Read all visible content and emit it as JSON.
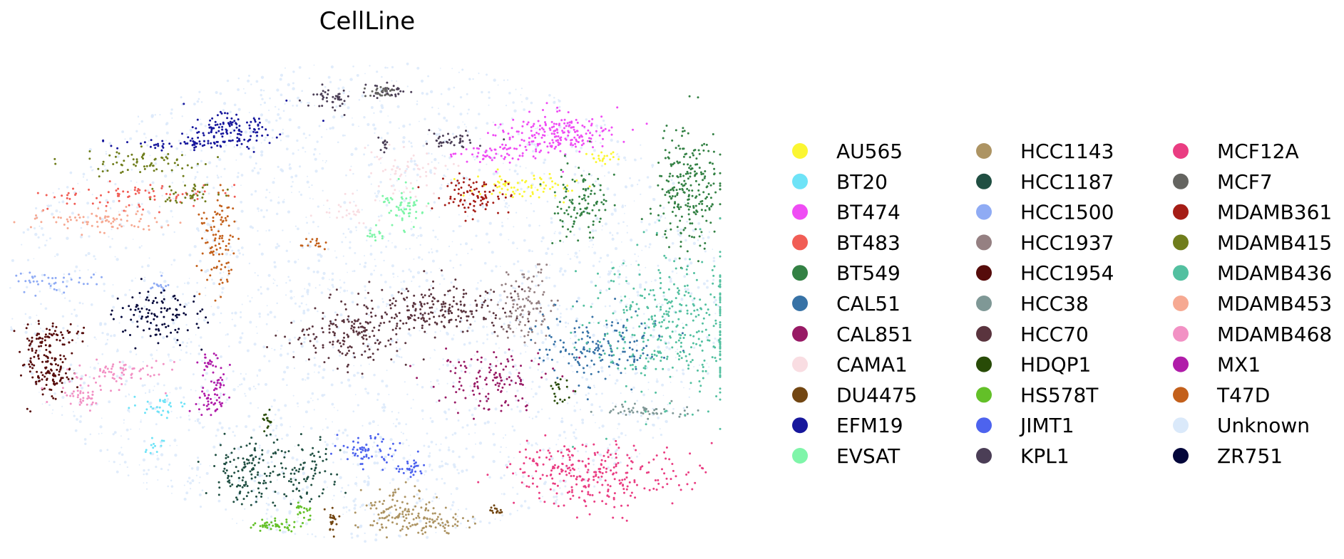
{
  "chart_data": {
    "type": "scatter",
    "title": "CellLine",
    "xlabel": "",
    "ylabel": "",
    "grid": false,
    "axes_visible": false,
    "legend_placement": "right",
    "legend_columns": 3,
    "x_range": [
      0,
      1
    ],
    "y_range": [
      0,
      1
    ],
    "background_color": "#ffffff",
    "series": [
      {
        "name": "AU565",
        "color": "#fbf632",
        "clusters": [
          {
            "x": 0.72,
            "y": 0.26,
            "sx": 0.035,
            "sy": 0.012,
            "n": 70
          },
          {
            "x": 0.83,
            "y": 0.2,
            "sx": 0.012,
            "sy": 0.008,
            "n": 20
          }
        ]
      },
      {
        "name": "BT20",
        "color": "#6ee3f7",
        "clusters": [
          {
            "x": 0.21,
            "y": 0.72,
            "sx": 0.018,
            "sy": 0.012,
            "n": 30
          },
          {
            "x": 0.2,
            "y": 0.8,
            "sx": 0.006,
            "sy": 0.012,
            "n": 12
          }
        ]
      },
      {
        "name": "BT474",
        "color": "#ef4cf4",
        "clusters": [
          {
            "x": 0.76,
            "y": 0.15,
            "sx": 0.04,
            "sy": 0.022,
            "n": 200
          },
          {
            "x": 0.67,
            "y": 0.19,
            "sx": 0.028,
            "sy": 0.01,
            "n": 50
          }
        ]
      },
      {
        "name": "BT483",
        "color": "#f15d55",
        "clusters": [
          {
            "x": 0.17,
            "y": 0.28,
            "sx": 0.06,
            "sy": 0.014,
            "n": 80
          }
        ]
      },
      {
        "name": "BT549",
        "color": "#338144",
        "clusters": [
          {
            "x": 0.95,
            "y": 0.27,
            "sx": 0.022,
            "sy": 0.065,
            "n": 240
          },
          {
            "x": 0.8,
            "y": 0.29,
            "sx": 0.02,
            "sy": 0.04,
            "n": 110
          }
        ]
      },
      {
        "name": "CAL51",
        "color": "#3772a6",
        "clusters": [
          {
            "x": 0.83,
            "y": 0.59,
            "sx": 0.05,
            "sy": 0.035,
            "n": 170
          }
        ]
      },
      {
        "name": "CAL851",
        "color": "#981a65",
        "clusters": [
          {
            "x": 0.67,
            "y": 0.67,
            "sx": 0.04,
            "sy": 0.03,
            "n": 130
          }
        ]
      },
      {
        "name": "CAMA1",
        "color": "#f9dde2",
        "clusters": [
          {
            "x": 0.56,
            "y": 0.23,
            "sx": 0.03,
            "sy": 0.03,
            "n": 60
          },
          {
            "x": 0.47,
            "y": 0.31,
            "sx": 0.02,
            "sy": 0.015,
            "n": 25
          }
        ]
      },
      {
        "name": "DU4475",
        "color": "#724612",
        "clusters": [
          {
            "x": 0.45,
            "y": 0.96,
            "sx": 0.004,
            "sy": 0.012,
            "n": 20
          },
          {
            "x": 0.68,
            "y": 0.94,
            "sx": 0.008,
            "sy": 0.005,
            "n": 15
          }
        ]
      },
      {
        "name": "EFM19",
        "color": "#17179c",
        "clusters": [
          {
            "x": 0.31,
            "y": 0.14,
            "sx": 0.03,
            "sy": 0.02,
            "n": 130
          },
          {
            "x": 0.24,
            "y": 0.17,
            "sx": 0.04,
            "sy": 0.006,
            "n": 50
          }
        ]
      },
      {
        "name": "EVSAT",
        "color": "#7ff5a9",
        "clusters": [
          {
            "x": 0.55,
            "y": 0.3,
            "sx": 0.014,
            "sy": 0.02,
            "n": 60
          },
          {
            "x": 0.51,
            "y": 0.36,
            "sx": 0.006,
            "sy": 0.008,
            "n": 15
          }
        ]
      },
      {
        "name": "HCC1143",
        "color": "#ad9463",
        "clusters": [
          {
            "x": 0.54,
            "y": 0.94,
            "sx": 0.025,
            "sy": 0.025,
            "n": 110
          },
          {
            "x": 0.6,
            "y": 0.96,
            "sx": 0.02,
            "sy": 0.012,
            "n": 60
          }
        ]
      },
      {
        "name": "HCC1187",
        "color": "#204f42",
        "clusters": [
          {
            "x": 0.34,
            "y": 0.86,
            "sx": 0.03,
            "sy": 0.035,
            "n": 150
          },
          {
            "x": 0.42,
            "y": 0.86,
            "sx": 0.02,
            "sy": 0.03,
            "n": 70
          }
        ]
      },
      {
        "name": "HCC1500",
        "color": "#8fabf4",
        "clusters": [
          {
            "x": 0.06,
            "y": 0.46,
            "sx": 0.03,
            "sy": 0.012,
            "n": 40
          },
          {
            "x": 0.21,
            "y": 0.47,
            "sx": 0.008,
            "sy": 0.008,
            "n": 15
          }
        ]
      },
      {
        "name": "HCC1937",
        "color": "#958082",
        "clusters": [
          {
            "x": 0.72,
            "y": 0.51,
            "sx": 0.02,
            "sy": 0.04,
            "n": 110
          }
        ]
      },
      {
        "name": "HCC1954",
        "color": "#560c0b",
        "clusters": [
          {
            "x": 0.05,
            "y": 0.64,
            "sx": 0.018,
            "sy": 0.03,
            "n": 130
          },
          {
            "x": 0.05,
            "y": 0.57,
            "sx": 0.025,
            "sy": 0.012,
            "n": 60
          }
        ]
      },
      {
        "name": "HCC38",
        "color": "#7f9896",
        "clusters": [
          {
            "x": 0.89,
            "y": 0.73,
            "sx": 0.035,
            "sy": 0.008,
            "n": 50
          }
        ]
      },
      {
        "name": "HCC70",
        "color": "#5a343e",
        "clusters": [
          {
            "x": 0.6,
            "y": 0.52,
            "sx": 0.06,
            "sy": 0.025,
            "n": 220
          },
          {
            "x": 0.48,
            "y": 0.57,
            "sx": 0.04,
            "sy": 0.03,
            "n": 160
          }
        ]
      },
      {
        "name": "HDQP1",
        "color": "#284b07",
        "clusters": [
          {
            "x": 0.77,
            "y": 0.69,
            "sx": 0.008,
            "sy": 0.015,
            "n": 20
          },
          {
            "x": 0.36,
            "y": 0.75,
            "sx": 0.004,
            "sy": 0.012,
            "n": 15
          }
        ]
      },
      {
        "name": "HS578T",
        "color": "#63c028",
        "clusters": [
          {
            "x": 0.37,
            "y": 0.97,
            "sx": 0.018,
            "sy": 0.006,
            "n": 45
          },
          {
            "x": 0.41,
            "y": 0.94,
            "sx": 0.006,
            "sy": 0.01,
            "n": 20
          }
        ]
      },
      {
        "name": "JIMT1",
        "color": "#4d63ee",
        "clusters": [
          {
            "x": 0.5,
            "y": 0.81,
            "sx": 0.02,
            "sy": 0.015,
            "n": 60
          },
          {
            "x": 0.56,
            "y": 0.85,
            "sx": 0.015,
            "sy": 0.008,
            "n": 30
          }
        ]
      },
      {
        "name": "KPL1",
        "color": "#4b3e56",
        "clusters": [
          {
            "x": 0.45,
            "y": 0.07,
            "sx": 0.015,
            "sy": 0.012,
            "n": 40
          },
          {
            "x": 0.53,
            "y": 0.06,
            "sx": 0.015,
            "sy": 0.008,
            "n": 35
          },
          {
            "x": 0.62,
            "y": 0.16,
            "sx": 0.02,
            "sy": 0.01,
            "n": 40
          },
          {
            "x": 0.52,
            "y": 0.17,
            "sx": 0.004,
            "sy": 0.012,
            "n": 12
          }
        ]
      },
      {
        "name": "MCF12A",
        "color": "#ea3d82",
        "clusters": [
          {
            "x": 0.84,
            "y": 0.87,
            "sx": 0.06,
            "sy": 0.035,
            "n": 220
          },
          {
            "x": 0.76,
            "y": 0.84,
            "sx": 0.03,
            "sy": 0.02,
            "n": 60
          }
        ]
      },
      {
        "name": "MCF7",
        "color": "#646460",
        "clusters": [
          {
            "x": 0.52,
            "y": 0.06,
            "sx": 0.012,
            "sy": 0.006,
            "n": 30
          }
        ]
      },
      {
        "name": "MDAMB361",
        "color": "#a51d16",
        "clusters": [
          {
            "x": 0.65,
            "y": 0.28,
            "sx": 0.025,
            "sy": 0.02,
            "n": 90
          }
        ]
      },
      {
        "name": "MDAMB415",
        "color": "#6f7d1c",
        "clusters": [
          {
            "x": 0.18,
            "y": 0.21,
            "sx": 0.05,
            "sy": 0.012,
            "n": 70
          },
          {
            "x": 0.25,
            "y": 0.28,
            "sx": 0.02,
            "sy": 0.012,
            "n": 40
          }
        ]
      },
      {
        "name": "MDAMB436",
        "color": "#53c0a0",
        "clusters": [
          {
            "x": 0.93,
            "y": 0.55,
            "sx": 0.06,
            "sy": 0.08,
            "n": 380
          }
        ]
      },
      {
        "name": "MDAMB453",
        "color": "#f6a992",
        "clusters": [
          {
            "x": 0.12,
            "y": 0.33,
            "sx": 0.05,
            "sy": 0.012,
            "n": 80
          }
        ]
      },
      {
        "name": "MDAMB468",
        "color": "#f291c4",
        "clusters": [
          {
            "x": 0.16,
            "y": 0.65,
            "sx": 0.03,
            "sy": 0.01,
            "n": 60
          },
          {
            "x": 0.1,
            "y": 0.69,
            "sx": 0.02,
            "sy": 0.02,
            "n": 50
          }
        ]
      },
      {
        "name": "MX1",
        "color": "#b01ca9",
        "clusters": [
          {
            "x": 0.28,
            "y": 0.63,
            "sx": 0.01,
            "sy": 0.01,
            "n": 25
          },
          {
            "x": 0.28,
            "y": 0.71,
            "sx": 0.012,
            "sy": 0.015,
            "n": 40
          },
          {
            "x": 0.29,
            "y": 0.67,
            "sx": 0.008,
            "sy": 0.008,
            "n": 15
          }
        ]
      },
      {
        "name": "T47D",
        "color": "#c3601b",
        "clusters": [
          {
            "x": 0.29,
            "y": 0.37,
            "sx": 0.012,
            "sy": 0.05,
            "n": 100
          },
          {
            "x": 0.42,
            "y": 0.38,
            "sx": 0.01,
            "sy": 0.005,
            "n": 15
          }
        ]
      },
      {
        "name": "Unknown",
        "color": "#dae9fa",
        "clusters": []
      },
      {
        "name": "ZR751",
        "color": "#03063a",
        "clusters": [
          {
            "x": 0.21,
            "y": 0.53,
            "sx": 0.03,
            "sy": 0.03,
            "n": 110
          }
        ]
      }
    ]
  }
}
